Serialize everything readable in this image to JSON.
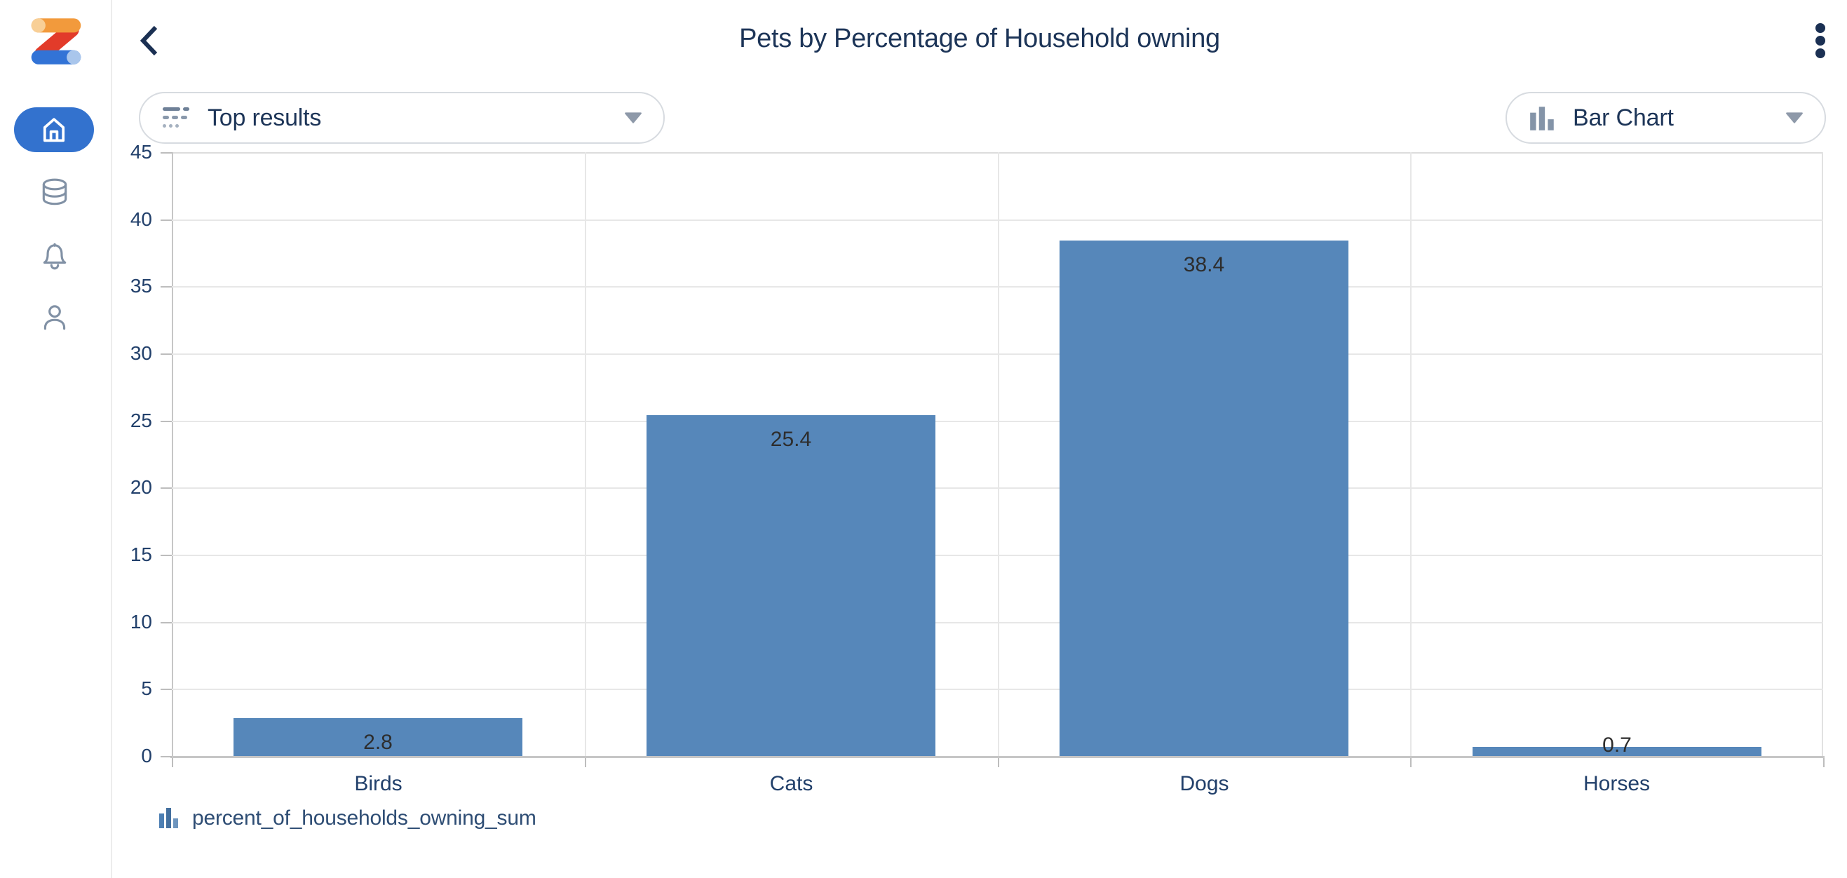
{
  "header": {
    "title": "Pets by Percentage of Household owning",
    "back_icon": "chevron-left-icon",
    "menu_icon": "kebab-menu-icon"
  },
  "sidebar": {
    "logo": "zoho-z-logo",
    "active_item": "home",
    "active_pill_color": "#3372CE",
    "icon_color": "#8191A5",
    "items": [
      {
        "id": "home",
        "icon": "home-icon",
        "active": true
      },
      {
        "id": "data",
        "icon": "database-icon",
        "active": false
      },
      {
        "id": "notifications",
        "icon": "bell-icon",
        "active": false
      },
      {
        "id": "profile",
        "icon": "user-icon",
        "active": false
      }
    ]
  },
  "controls": {
    "top_results": {
      "label": "Top results",
      "icon": "top-results-filter-icon",
      "caret": "caret-down-icon"
    },
    "chart_type": {
      "label": "Bar Chart",
      "icon": "bar-chart-icon",
      "caret": "caret-down-icon"
    }
  },
  "chart_data": {
    "type": "bar",
    "title": "Pets by Percentage of Household owning",
    "categories": [
      "Birds",
      "Cats",
      "Dogs",
      "Horses"
    ],
    "values": [
      2.8,
      25.4,
      38.4,
      0.7
    ],
    "value_labels": [
      "2.8",
      "25.4",
      "38.4",
      "0.7"
    ],
    "series": [
      {
        "name": "percent_of_households_owning_sum",
        "values": [
          2.8,
          25.4,
          38.4,
          0.7
        ]
      }
    ],
    "xlabel": "",
    "ylabel": "",
    "ylim": [
      0,
      45
    ],
    "yticks": [
      0,
      5,
      10,
      15,
      20,
      25,
      30,
      35,
      40,
      45
    ],
    "grid": true,
    "bar_color": "#5687BA",
    "legend_position": "bottom-left"
  },
  "legend": {
    "icon": "bar-chart-icon",
    "label": "percent_of_households_owning_sum",
    "swatch_color": "#4D7FB3"
  },
  "colors": {
    "navy_text": "#1D3558",
    "axis_text": "#22406B",
    "icon_slate": "#8191A5",
    "bar_blue": "#5687BA",
    "grid_line": "#E7E7E7",
    "axis_line": "#C6C6C6",
    "logo_orange": "#F29A3C",
    "logo_orange_cap": "#F8CF96",
    "logo_red": "#E23B2A",
    "logo_blue": "#3273D6",
    "logo_blue_cap": "#A9C6EC"
  }
}
